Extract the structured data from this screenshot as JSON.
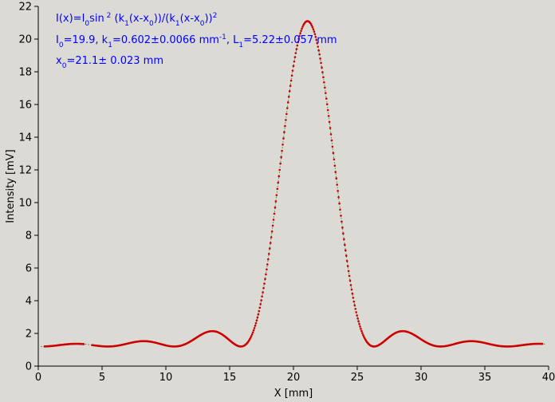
{
  "chart_data": {
    "type": "scatter",
    "title": "",
    "xlabel": "X [mm]",
    "ylabel": "Intensity [mV]",
    "xlim": [
      0,
      40
    ],
    "ylim": [
      0,
      22
    ],
    "x_ticks": [
      0,
      5,
      10,
      15,
      20,
      25,
      30,
      35,
      40
    ],
    "y_ticks": [
      0,
      2,
      4,
      6,
      8,
      10,
      12,
      14,
      16,
      18,
      20,
      22
    ],
    "grid": false,
    "legend": "none",
    "annotations": {
      "formula": {
        "p1": "I(x)=I",
        "s1": "0",
        "p2": "sin",
        "sup1": " 2",
        "p3": " (k",
        "s2": "1",
        "p4": "(x-x",
        "s3": "0",
        "p5": "))/(k",
        "s4": "1",
        "p6": "(x-x",
        "s5": "0",
        "p7": "))",
        "sup2": "2"
      },
      "params1": {
        "p1": "I",
        "s1": "0",
        "p2": "=19.9,  k",
        "s2": "1",
        "p3": "=0.602±0.0066 mm",
        "sup1": "-1",
        "p4": ",   L",
        "s3": "1",
        "p5": "=5.22±0.057 mm"
      },
      "params2": {
        "p1": "x",
        "s1": "0",
        "p2": "=21.1±   0.023 mm"
      }
    },
    "series": [
      {
        "color": "#cc0000",
        "fit": {
          "I0": 19.9,
          "k1": 0.602,
          "x0": 21.1,
          "background": 1.2,
          "x_min": 0.5,
          "x_max": 39.5,
          "gap": [
            3.6,
            4.2
          ]
        }
      }
    ],
    "fit_line_color": "#2a6e2a"
  }
}
